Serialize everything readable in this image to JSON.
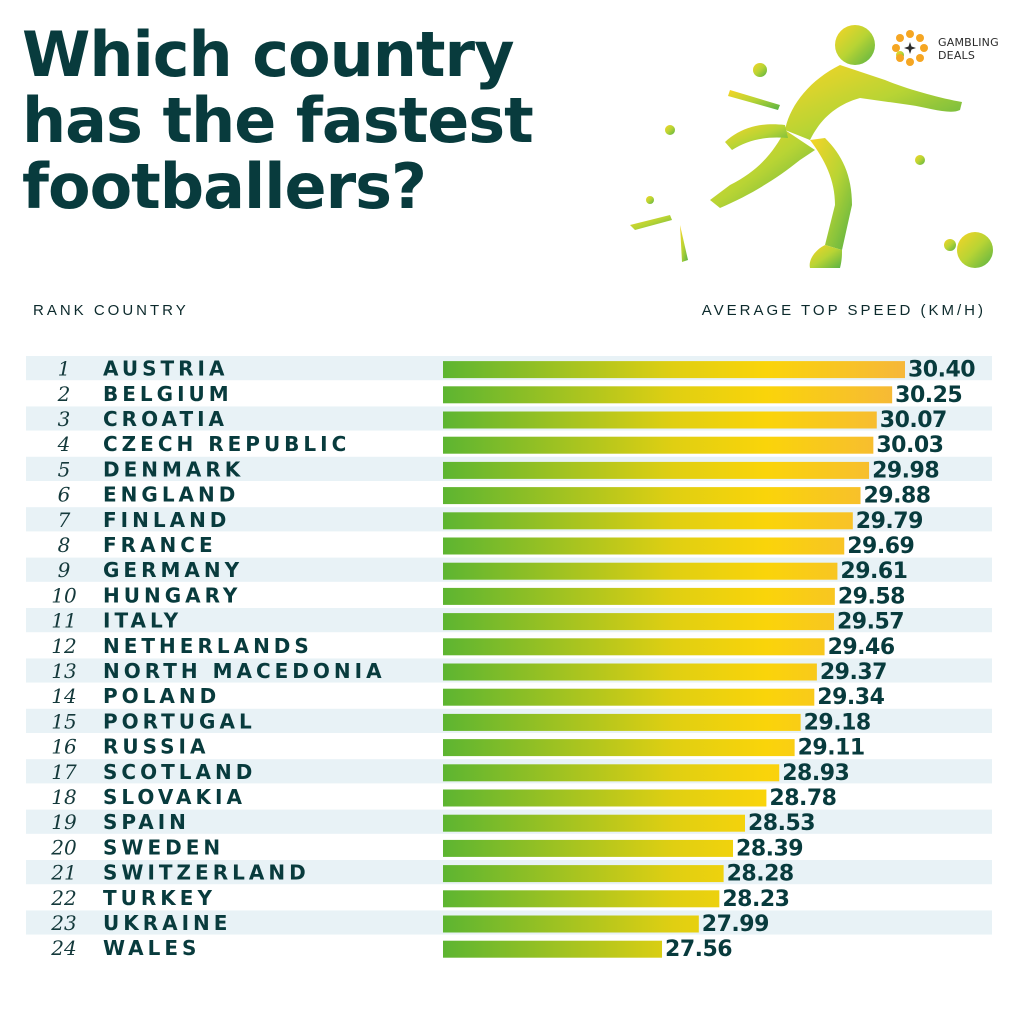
{
  "title_lines": [
    "Which country",
    "has the fastest",
    "footballers?"
  ],
  "brand": {
    "line1": "GAMBLING",
    "line2": "DEALS",
    "icon": "gambling-deals-logo-icon"
  },
  "hero_image": "football-player-splash-icon",
  "columns": {
    "rank_country": "RANK COUNTRY",
    "speed": "AVERAGE TOP SPEED (KM/H)"
  },
  "colors": {
    "text": "#083b3d",
    "stripe": "#e8f2f6",
    "bar_start": "#5db531",
    "bar_mid": "#f4d00a",
    "bar_end": "#f6b73a"
  },
  "chart_data": {
    "type": "bar",
    "orientation": "horizontal",
    "title": "Which country has the fastest footballers?",
    "xlabel": "AVERAGE TOP SPEED (KM/H)",
    "ylabel": "RANK COUNTRY",
    "xlim": [
      25,
      30.4
    ],
    "grid": false,
    "legend": "none",
    "ranks": [
      "1",
      "2",
      "3",
      "4",
      "5",
      "6",
      "7",
      "8",
      "9",
      "10",
      "11",
      "12",
      "13",
      "14",
      "15",
      "16",
      "17",
      "18",
      "19",
      "20",
      "21",
      "22",
      "23",
      "24"
    ],
    "categories": [
      "AUSTRIA",
      "BELGIUM",
      "CROATIA",
      "CZECH REPUBLIC",
      "DENMARK",
      "ENGLAND",
      "FINLAND",
      "FRANCE",
      "GERMANY",
      "HUNGARY",
      "ITALY",
      "NETHERLANDS",
      "NORTH MACEDONIA",
      "POLAND",
      "PORTUGAL",
      "RUSSIA",
      "SCOTLAND",
      "SLOVAKIA",
      "SPAIN",
      "SWEDEN",
      "SWITZERLAND",
      "TURKEY",
      "UKRAINE",
      "WALES"
    ],
    "values": [
      30.4,
      30.25,
      30.07,
      30.03,
      29.98,
      29.88,
      29.79,
      29.69,
      29.61,
      29.58,
      29.57,
      29.46,
      29.37,
      29.34,
      29.18,
      29.11,
      28.93,
      28.78,
      28.53,
      28.39,
      28.28,
      28.23,
      27.99,
      27.56
    ],
    "value_labels": [
      "30.40",
      "30.25",
      "30.07",
      "30.03",
      "29.98",
      "29.88",
      "29.79",
      "29.69",
      "29.61",
      "29.58",
      "29.57",
      "29.46",
      "29.37",
      "29.34",
      "29.18",
      "29.11",
      "28.93",
      "28.78",
      "28.53",
      "28.39",
      "28.28",
      "28.23",
      "27.99",
      "27.56"
    ]
  }
}
